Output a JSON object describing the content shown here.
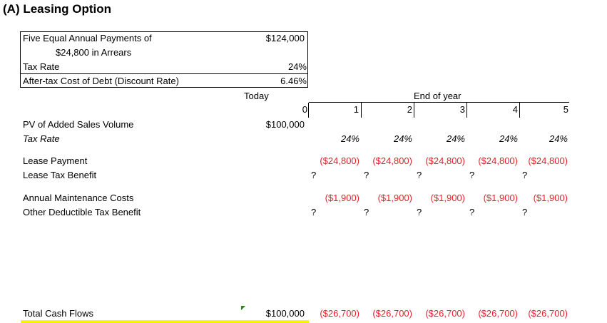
{
  "title": "(A) Leasing Option",
  "inputs": {
    "payments_label_1": "Five Equal Annual Payments of",
    "payments_label_2": "$24,800  in Arrears",
    "payments_value": "$124,000",
    "tax_rate_label": "Tax Rate",
    "tax_rate_value": "24%",
    "cost_of_debt_label": "After-tax Cost of Debt (Discount Rate)",
    "cost_of_debt_value": "6.46%"
  },
  "header": {
    "today": "Today",
    "end_of_year": "End of year",
    "years": [
      "0",
      "1",
      "2",
      "3",
      "4",
      "5"
    ]
  },
  "rows": {
    "pv_label": "PV of Added Sales Volume",
    "pv_value": "$100,000",
    "tax_rate_label": "Tax Rate",
    "tax_rates": [
      "24%",
      "24%",
      "24%",
      "24%",
      "24%"
    ],
    "lease_payment_label": "Lease Payment",
    "lease_payments": [
      "($24,800)",
      "($24,800)",
      "($24,800)",
      "($24,800)",
      "($24,800)"
    ],
    "lease_tax_benefit_label": "Lease Tax Benefit",
    "lease_tax_benefit_marks": [
      "?",
      "?",
      "?",
      "?",
      "?"
    ],
    "maintenance_label": "Annual Maintenance Costs",
    "maintenance_costs": [
      "($1,900)",
      "($1,900)",
      "($1,900)",
      "($1,900)",
      "($1,900)"
    ],
    "other_benefit_label": "Other Deductible Tax Benefit",
    "other_benefit_marks": [
      "?",
      "?",
      "?",
      "?",
      "?"
    ],
    "total_label": "Total Cash Flows",
    "total_today": "$100,000",
    "totals": [
      "($26,700)",
      "($26,700)",
      "($26,700)",
      "($26,700)",
      "($26,700)"
    ]
  },
  "colors": {
    "negative_text": "#e8202a",
    "highlight_underline": "#f5f500",
    "comment_marker": "#1a8c1a"
  }
}
